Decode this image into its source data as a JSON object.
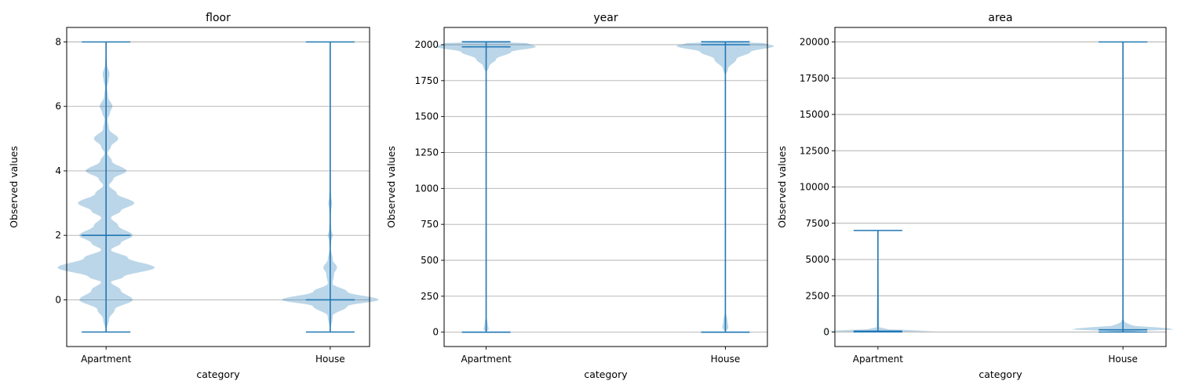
{
  "chart_data": [
    {
      "type": "violin",
      "title": "floor",
      "xlabel": "category",
      "ylabel": "Observed values",
      "categories": [
        "Apartment",
        "House"
      ],
      "ylim": [
        -1.45,
        8.45
      ],
      "yticks": [
        0,
        2,
        4,
        6,
        8
      ],
      "ytick_labels": [
        "0",
        "2",
        "4",
        "6",
        "8"
      ],
      "grid": "y",
      "series": [
        {
          "category": "Apartment",
          "min": -1,
          "max": 8,
          "median": 2,
          "density": [
            [
              -1,
              0.0
            ],
            [
              -0.6,
              0.06
            ],
            [
              -0.3,
              0.18
            ],
            [
              0,
              0.55
            ],
            [
              0.3,
              0.3
            ],
            [
              0.55,
              0.1
            ],
            [
              0.7,
              0.35
            ],
            [
              1,
              1.0
            ],
            [
              1.3,
              0.45
            ],
            [
              1.55,
              0.1
            ],
            [
              1.75,
              0.3
            ],
            [
              2,
              0.55
            ],
            [
              2.3,
              0.25
            ],
            [
              2.55,
              0.1
            ],
            [
              2.75,
              0.3
            ],
            [
              3,
              0.58
            ],
            [
              3.3,
              0.22
            ],
            [
              3.55,
              0.06
            ],
            [
              3.75,
              0.15
            ],
            [
              4,
              0.42
            ],
            [
              4.3,
              0.12
            ],
            [
              4.55,
              0.03
            ],
            [
              4.75,
              0.1
            ],
            [
              5,
              0.25
            ],
            [
              5.3,
              0.06
            ],
            [
              5.6,
              0.03
            ],
            [
              5.8,
              0.08
            ],
            [
              6,
              0.13
            ],
            [
              6.3,
              0.04
            ],
            [
              6.6,
              0.02
            ],
            [
              6.8,
              0.05
            ],
            [
              7,
              0.07
            ],
            [
              7.3,
              0.02
            ],
            [
              7.6,
              0.01
            ],
            [
              8,
              0.0
            ]
          ]
        },
        {
          "category": "House",
          "min": -1,
          "max": 8,
          "median": 0,
          "density": [
            [
              -1,
              0.0
            ],
            [
              -0.5,
              0.05
            ],
            [
              -0.2,
              0.35
            ],
            [
              0,
              1.0
            ],
            [
              0.25,
              0.35
            ],
            [
              0.5,
              0.05
            ],
            [
              0.8,
              0.08
            ],
            [
              1,
              0.14
            ],
            [
              1.25,
              0.05
            ],
            [
              1.6,
              0.01
            ],
            [
              1.8,
              0.02
            ],
            [
              2,
              0.05
            ],
            [
              2.2,
              0.02
            ],
            [
              2.5,
              0.005
            ],
            [
              2.8,
              0.02
            ],
            [
              3,
              0.04
            ],
            [
              3.2,
              0.02
            ],
            [
              3.6,
              0.0
            ],
            [
              8,
              0.0
            ]
          ]
        }
      ]
    },
    {
      "type": "violin",
      "title": "year",
      "xlabel": "category",
      "ylabel": "Observed values",
      "categories": [
        "Apartment",
        "House"
      ],
      "ylim": [
        -100,
        2120
      ],
      "yticks": [
        0,
        250,
        500,
        750,
        1000,
        1250,
        1500,
        1750,
        2000
      ],
      "ytick_labels": [
        "0",
        "250",
        "500",
        "750",
        "1000",
        "1250",
        "1500",
        "1750",
        "2000"
      ],
      "grid": "y",
      "series": [
        {
          "category": "Apartment",
          "min": 0,
          "max": 2020,
          "median": 1985,
          "density": [
            [
              0,
              0.0
            ],
            [
              20,
              0.05
            ],
            [
              60,
              0.03
            ],
            [
              120,
              0.0
            ],
            [
              1800,
              0.0
            ],
            [
              1850,
              0.06
            ],
            [
              1900,
              0.2
            ],
            [
              1950,
              0.5
            ],
            [
              1985,
              1.0
            ],
            [
              2010,
              0.85
            ],
            [
              2020,
              0.0
            ]
          ]
        },
        {
          "category": "House",
          "min": 0,
          "max": 2020,
          "median": 2000,
          "density": [
            [
              0,
              0.0
            ],
            [
              30,
              0.06
            ],
            [
              80,
              0.04
            ],
            [
              150,
              0.0
            ],
            [
              1780,
              0.0
            ],
            [
              1830,
              0.05
            ],
            [
              1900,
              0.22
            ],
            [
              1950,
              0.5
            ],
            [
              1990,
              0.98
            ],
            [
              2010,
              0.8
            ],
            [
              2020,
              0.0
            ]
          ]
        }
      ]
    },
    {
      "type": "violin",
      "title": "area",
      "xlabel": "category",
      "ylabel": "Observed values",
      "categories": [
        "Apartment",
        "House"
      ],
      "ylim": [
        -1000,
        21000
      ],
      "yticks": [
        0,
        2500,
        5000,
        7500,
        10000,
        12500,
        15000,
        17500,
        20000
      ],
      "ytick_labels": [
        "0",
        "2500",
        "5000",
        "7500",
        "10000",
        "12500",
        "15000",
        "17500",
        "20000"
      ],
      "grid": "y",
      "series": [
        {
          "category": "Apartment",
          "min": 10,
          "max": 7000,
          "median": 60,
          "density": [
            [
              10,
              0.0
            ],
            [
              40,
              0.7
            ],
            [
              70,
              1.0
            ],
            [
              120,
              0.6
            ],
            [
              200,
              0.15
            ],
            [
              350,
              0.02
            ],
            [
              7000,
              0.0
            ]
          ]
        },
        {
          "category": "House",
          "min": 0,
          "max": 20000,
          "median": 150,
          "density": [
            [
              0,
              0.0
            ],
            [
              80,
              0.3
            ],
            [
              200,
              1.0
            ],
            [
              300,
              0.6
            ],
            [
              450,
              0.15
            ],
            [
              700,
              0.03
            ],
            [
              1000,
              0.0
            ],
            [
              20000,
              0.0
            ]
          ]
        }
      ]
    }
  ]
}
